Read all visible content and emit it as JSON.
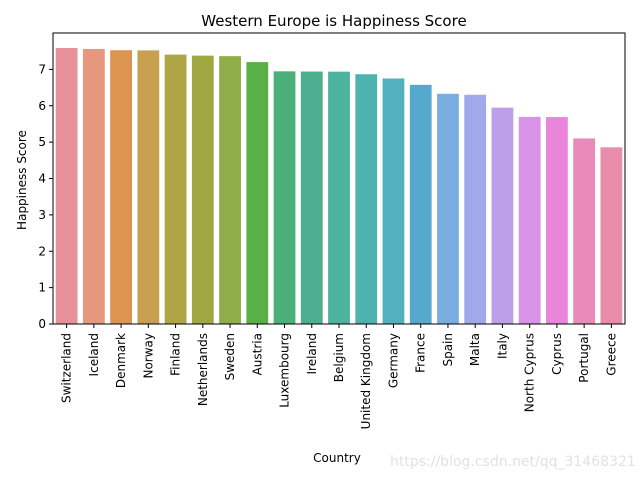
{
  "chart_data": {
    "type": "bar",
    "title": "Western Europe is Happiness Score",
    "xlabel": "Country",
    "ylabel": "Happiness Score",
    "ylim": [
      0,
      8
    ],
    "yticks": [
      0,
      1,
      2,
      3,
      4,
      5,
      6,
      7
    ],
    "grid": false,
    "categories": [
      "Switzerland",
      "Iceland",
      "Denmark",
      "Norway",
      "Finland",
      "Netherlands",
      "Sweden",
      "Austria",
      "Luxembourg",
      "Ireland",
      "Belgium",
      "United Kingdom",
      "Germany",
      "France",
      "Spain",
      "Malta",
      "Italy",
      "North Cyprus",
      "Cyprus",
      "Portugal",
      "Greece"
    ],
    "values": [
      7.587,
      7.561,
      7.527,
      7.522,
      7.406,
      7.378,
      7.364,
      7.2,
      6.946,
      6.94,
      6.937,
      6.867,
      6.75,
      6.575,
      6.329,
      6.302,
      5.948,
      5.695,
      5.689,
      5.102,
      4.857
    ],
    "colors": [
      "#e8909a",
      "#e8977f",
      "#dc9450",
      "#c9a050",
      "#b0a545",
      "#a0a842",
      "#8fad48",
      "#59b046",
      "#4ab078",
      "#4cb090",
      "#4cb39f",
      "#4eb3ae",
      "#51b1bd",
      "#55a9cc",
      "#7aaee0",
      "#a1a8eb",
      "#bc9ee9",
      "#d892e6",
      "#e986dc",
      "#e98ab8",
      "#e88ca9"
    ]
  },
  "watermark": "https://blog.csdn.net/qq_31468321"
}
